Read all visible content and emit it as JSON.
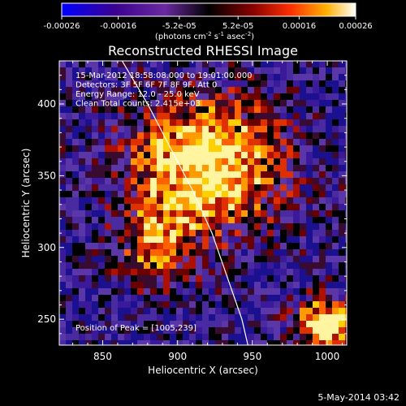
{
  "chart_data": {
    "type": "heatmap",
    "title": "Reconstructed RHESSI Image",
    "xlabel": "Heliocentric X (arcsec)",
    "ylabel": "Heliocentric Y (arcsec)",
    "xlim": [
      821,
      1013
    ],
    "ylim": [
      232,
      430
    ],
    "xticks": [
      850,
      900,
      950,
      1000
    ],
    "yticks": [
      250,
      300,
      350,
      400
    ],
    "colorbar": {
      "range": [
        -0.00026,
        0.00026
      ],
      "ticks": [
        {
          "value": -0.00026,
          "label": "-0.00026"
        },
        {
          "value": -0.00016,
          "label": "-0.00016"
        },
        {
          "value": -5.2e-05,
          "label": "-5.2e-05"
        },
        {
          "value": 5.2e-05,
          "label": "5.2e-05"
        },
        {
          "value": 0.00016,
          "label": "0.00016"
        },
        {
          "value": 0.00026,
          "label": "0.00026"
        }
      ],
      "unit_main": "(photons cm",
      "unit_sup1": "-2",
      "unit_mid": " s",
      "unit_sup2": "-1",
      "unit_mid2": " asec",
      "unit_sup3": "-2",
      "unit_end": ")"
    },
    "annotations": [
      "15-Mar-2012 18:58:08.000 to 19:01:00.000",
      "Detectors: 3F 5F 6F 7F 8F 9F, Att 0",
      "Energy Range: 12.0 - 25.0 keV",
      "Clean     Total counts: 2.415e+03"
    ],
    "peak_label": "Position of Peak = [1005,239]",
    "limb_curve": [
      [
        863,
        430
      ],
      [
        880,
        400
      ],
      [
        895,
        370
      ],
      [
        910,
        340
      ],
      [
        923,
        310
      ],
      [
        933,
        280
      ],
      [
        943,
        250
      ],
      [
        947,
        232
      ]
    ]
  },
  "footer": {
    "timestamp": "5-May-2014 03:42"
  }
}
